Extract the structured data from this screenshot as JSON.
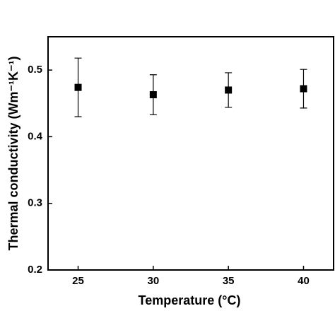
{
  "chart_data": {
    "type": "scatter",
    "xlabel": "Temperature (°C)",
    "ylabel": "Thermal conductivity (Wm⁻¹K⁻¹)",
    "x": [
      25,
      30,
      35,
      40
    ],
    "values": [
      0.474,
      0.463,
      0.47,
      0.472
    ],
    "errors": [
      0.044,
      0.03,
      0.026,
      0.029
    ],
    "color": "#000000",
    "xlim": [
      23,
      42
    ],
    "xticks": [
      25,
      30,
      35,
      40
    ],
    "ylim": [
      0.2,
      0.55
    ],
    "yticks": [
      0.2,
      0.3,
      0.4,
      0.5
    ]
  }
}
